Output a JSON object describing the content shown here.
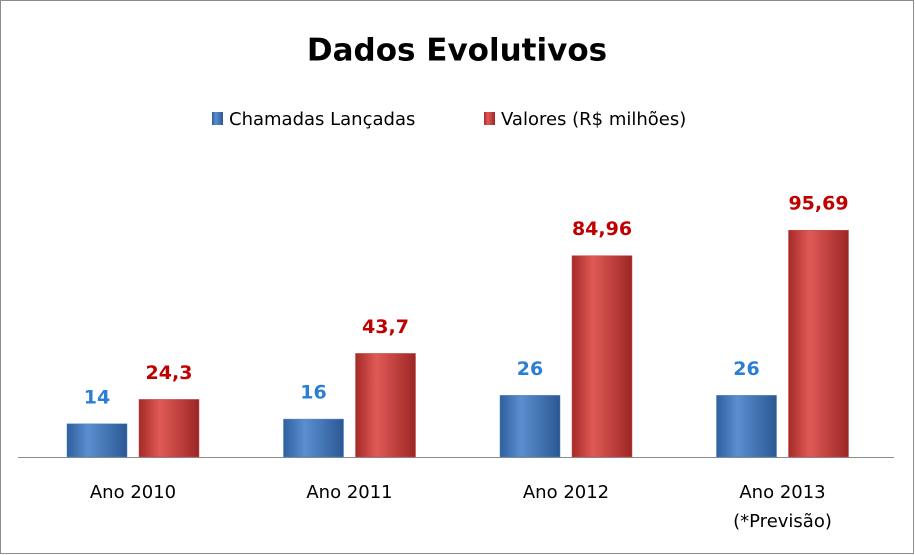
{
  "chart_data": {
    "type": "bar",
    "title": "Dados Evolutivos",
    "categories": [
      "Ano 2010",
      "Ano 2011",
      "Ano 2012",
      "Ano 2013\n(*Previsão)"
    ],
    "series": [
      {
        "name": "Chamadas Lançadas",
        "color": "#4f81bd",
        "label_color": "#2a7fd4",
        "values": [
          14,
          16,
          26,
          26
        ]
      },
      {
        "name": "Valores (R$ milhões)",
        "color": "#c0504d",
        "label_color": "#c00000",
        "values": [
          24.3,
          43.7,
          84.96,
          95.69
        ],
        "value_labels": [
          "24,3",
          "43,7",
          "84,96",
          "95,69"
        ]
      }
    ],
    "legend": "top"
  }
}
